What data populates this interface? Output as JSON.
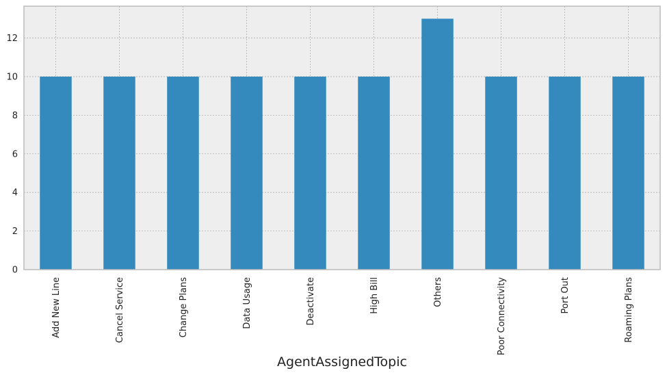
{
  "chart_data": {
    "type": "bar",
    "title": "",
    "xlabel": "AgentAssignedTopic",
    "ylabel": "",
    "categories": [
      "Add New Line",
      "Cancel Service",
      "Change Plans",
      "Data Usage",
      "Deactivate",
      "High Bill",
      "Others",
      "Poor Connectivity",
      "Port Out",
      "Roaming Plans"
    ],
    "values": [
      10,
      10,
      10,
      10,
      10,
      10,
      13,
      10,
      10,
      10
    ],
    "yticks": [
      0,
      2,
      4,
      6,
      8,
      10,
      12
    ],
    "ylim": [
      0,
      13.65
    ],
    "grid": true,
    "legend": "none",
    "colors": {
      "bar": "#348abd",
      "plot_background": "#eeeeee",
      "grid": "#b0b0b0",
      "frame": "#bcbcbc"
    }
  }
}
